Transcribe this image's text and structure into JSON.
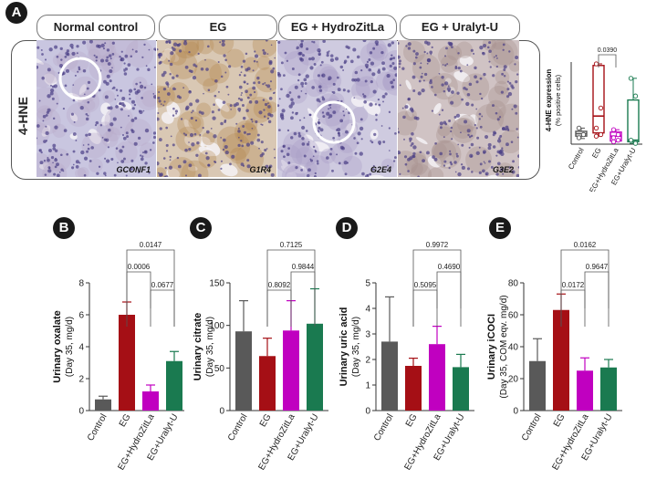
{
  "panel_labels": {
    "A": "A",
    "B": "B",
    "C": "C",
    "D": "D",
    "E": "E"
  },
  "panelA": {
    "row_label": "4-HNE",
    "columns": [
      {
        "header": "Normal control",
        "image_code": "GCONF1",
        "tint": "#c9c6e0",
        "stain": "#b7a9c9"
      },
      {
        "header": "EG",
        "image_code": "G1R4",
        "tint": "#d9c8b4",
        "stain": "#b58a52"
      },
      {
        "header": "EG + HydroZitLa",
        "image_code": "G2E4",
        "tint": "#cfcbe0",
        "stain": "#a99fc6"
      },
      {
        "header": "EG + Uralyt-U",
        "image_code": "G3E2",
        "tint": "#d0c3c4",
        "stain": "#a58f8c"
      }
    ]
  },
  "chart_data": [
    {
      "id": "A",
      "type": "box",
      "ylabel": "4-HNE expression",
      "ylabel2": "(% positive cells)",
      "ylim": [
        0,
        100
      ],
      "categories": [
        "Control",
        "EG",
        "EG+HydroZitLa",
        "EG+Uralyt-U"
      ],
      "colors": [
        "#555555",
        "#a50f15",
        "#c000c0",
        "#1a7a50"
      ],
      "boxes": [
        {
          "min": 7,
          "q1": 10,
          "median": 13,
          "q3": 16,
          "max": 20,
          "points": [
            20,
            12,
            8
          ]
        },
        {
          "min": 10,
          "q1": 14,
          "median": 35,
          "q3": 98,
          "max": 100,
          "points": [
            100,
            45,
            20,
            12,
            10
          ]
        },
        {
          "min": 3,
          "q1": 4,
          "median": 10,
          "q3": 15,
          "max": 18,
          "points": [
            18,
            12,
            8,
            5,
            3
          ]
        },
        {
          "min": 1,
          "q1": 3,
          "median": 5,
          "q3": 55,
          "max": 82,
          "points": [
            82,
            60,
            5,
            1
          ]
        }
      ],
      "comparisons": [
        {
          "from": 1,
          "to": 2,
          "label": "0.0390"
        }
      ]
    },
    {
      "id": "B",
      "type": "bar",
      "ylabel": "Urinary oxalate",
      "ylabel2": "(Day 35, mg/d)",
      "ylim": [
        0,
        8
      ],
      "yticks": [
        0,
        2,
        4,
        6,
        8
      ],
      "categories": [
        "Control",
        "EG",
        "EG+HydroZitLa",
        "EG+Uralyt-U"
      ],
      "values": [
        0.7,
        6.0,
        1.2,
        3.1
      ],
      "errors": [
        0.2,
        0.8,
        0.4,
        0.6
      ],
      "colors": [
        "#595959",
        "#a50f15",
        "#c000c0",
        "#1a7a50"
      ],
      "comparisons": [
        {
          "from": 1,
          "to": 3,
          "label": "0.0147"
        },
        {
          "from": 1,
          "to": 2,
          "label": "0.0006"
        },
        {
          "from": 2,
          "to": 3,
          "label": "0.0677"
        }
      ]
    },
    {
      "id": "C",
      "type": "bar",
      "ylabel": "Urinary citrate",
      "ylabel2": "(Day 35, mg/d)",
      "ylim": [
        0,
        150
      ],
      "yticks": [
        0,
        50,
        100,
        150
      ],
      "categories": [
        "Control",
        "EG",
        "EG+HydroZitLa",
        "EG+Uralyt-U"
      ],
      "values": [
        93,
        64,
        94,
        102
      ],
      "errors": [
        36,
        21,
        35,
        41
      ],
      "colors": [
        "#595959",
        "#a50f15",
        "#c000c0",
        "#1a7a50"
      ],
      "comparisons": [
        {
          "from": 1,
          "to": 3,
          "label": "0.7125"
        },
        {
          "from": 2,
          "to": 3,
          "label": "0.9844"
        },
        {
          "from": 1,
          "to": 2,
          "label": "0.8092"
        }
      ]
    },
    {
      "id": "D",
      "type": "bar",
      "ylabel": "Urinary uric acid",
      "ylabel2": "(Day 35, mg/d)",
      "ylim": [
        0,
        5
      ],
      "yticks": [
        0,
        1,
        2,
        3,
        4,
        5
      ],
      "categories": [
        "Control",
        "EG",
        "EG+HydroZitLa",
        "EG+Uralyt-U"
      ],
      "values": [
        2.7,
        1.75,
        2.6,
        1.7
      ],
      "errors": [
        1.75,
        0.3,
        0.7,
        0.5
      ],
      "colors": [
        "#595959",
        "#a50f15",
        "#c000c0",
        "#1a7a50"
      ],
      "comparisons": [
        {
          "from": 1,
          "to": 3,
          "label": "0.9972"
        },
        {
          "from": 2,
          "to": 3,
          "label": "0.4690"
        },
        {
          "from": 1,
          "to": 2,
          "label": "0.5095"
        }
      ]
    },
    {
      "id": "E",
      "type": "bar",
      "ylabel": "Urinary iCOCI",
      "ylabel2": "(Day 35, COM eqv. mg/d)",
      "ylim": [
        0,
        80
      ],
      "yticks": [
        0,
        20,
        40,
        60,
        80
      ],
      "categories": [
        "Control",
        "EG",
        "EG+HydroZitLa",
        "EG+Uralyt-U"
      ],
      "values": [
        31,
        63,
        25,
        27
      ],
      "errors": [
        14,
        10,
        8,
        5
      ],
      "colors": [
        "#595959",
        "#a50f15",
        "#c000c0",
        "#1a7a50"
      ],
      "comparisons": [
        {
          "from": 1,
          "to": 3,
          "label": "0.0162"
        },
        {
          "from": 2,
          "to": 3,
          "label": "0.9647"
        },
        {
          "from": 1,
          "to": 2,
          "label": "0.0172"
        }
      ]
    }
  ]
}
